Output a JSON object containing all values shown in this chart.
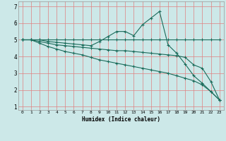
{
  "xlabel": "Humidex (Indice chaleur)",
  "bg_color": "#cce8e8",
  "grid_color": "#e08080",
  "line_color": "#1a6b5a",
  "xlim": [
    -0.5,
    23.5
  ],
  "ylim": [
    0.8,
    7.3
  ],
  "x_ticks": [
    0,
    1,
    2,
    3,
    4,
    5,
    6,
    7,
    8,
    9,
    10,
    11,
    12,
    13,
    14,
    15,
    16,
    17,
    18,
    19,
    20,
    21,
    22,
    23
  ],
  "y_ticks": [
    1,
    2,
    3,
    4,
    5,
    6,
    7
  ],
  "line1_x": [
    0,
    1,
    2,
    3,
    4,
    5,
    6,
    7,
    8,
    9,
    10,
    11,
    12,
    13,
    14,
    15,
    16,
    17,
    18,
    19,
    20,
    21,
    22,
    23
  ],
  "line1_y": [
    5.0,
    5.0,
    5.0,
    5.0,
    5.0,
    5.0,
    5.0,
    5.0,
    5.0,
    5.0,
    5.0,
    5.0,
    5.0,
    5.0,
    5.0,
    5.0,
    5.0,
    5.0,
    5.0,
    5.0,
    5.0,
    5.0,
    5.0,
    5.0
  ],
  "line2_x": [
    0,
    1,
    2,
    3,
    4,
    5,
    6,
    7,
    8,
    9,
    10,
    11,
    12,
    13,
    14,
    15,
    16,
    17,
    18,
    19,
    20,
    21,
    22,
    23
  ],
  "line2_y": [
    5.0,
    5.0,
    5.0,
    4.9,
    4.85,
    4.8,
    4.75,
    4.7,
    4.65,
    4.9,
    5.2,
    5.5,
    5.5,
    5.25,
    5.9,
    6.3,
    6.7,
    4.7,
    4.2,
    3.55,
    2.85,
    2.4,
    1.9,
    1.4
  ],
  "line3_x": [
    0,
    1,
    2,
    3,
    4,
    5,
    6,
    7,
    8,
    9,
    10,
    11,
    12,
    13,
    14,
    15,
    16,
    17,
    18,
    19,
    20,
    21,
    22,
    23
  ],
  "line3_y": [
    5.0,
    5.0,
    4.9,
    4.8,
    4.7,
    4.65,
    4.6,
    4.55,
    4.5,
    4.45,
    4.4,
    4.35,
    4.35,
    4.3,
    4.25,
    4.2,
    4.15,
    4.1,
    4.05,
    3.95,
    3.5,
    3.3,
    2.5,
    1.4
  ],
  "line4_x": [
    0,
    1,
    2,
    3,
    4,
    5,
    6,
    7,
    8,
    9,
    10,
    11,
    12,
    13,
    14,
    15,
    16,
    17,
    18,
    19,
    20,
    21,
    22,
    23
  ],
  "line4_y": [
    5.0,
    5.0,
    4.8,
    4.6,
    4.45,
    4.3,
    4.2,
    4.1,
    3.95,
    3.8,
    3.7,
    3.6,
    3.5,
    3.4,
    3.3,
    3.2,
    3.1,
    3.0,
    2.85,
    2.7,
    2.55,
    2.3,
    1.9,
    1.4
  ]
}
